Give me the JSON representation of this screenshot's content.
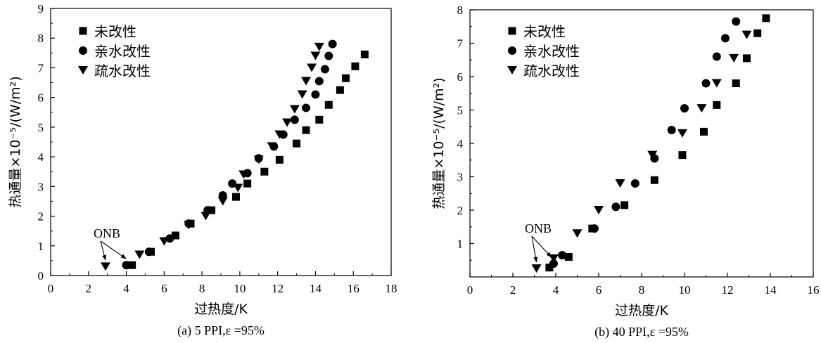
{
  "chart_data": [
    {
      "type": "scatter",
      "caption": "(a) 5 PPI,ε =95%",
      "xlabel": "过热度/K",
      "ylabel": "热通量×10⁻⁵/(W/m²)",
      "xlim": [
        0,
        18
      ],
      "ylim": [
        0,
        9
      ],
      "xticks": [
        0,
        2,
        4,
        6,
        8,
        10,
        12,
        14,
        16,
        18
      ],
      "yticks": [
        0,
        1,
        2,
        3,
        4,
        5,
        6,
        7,
        8,
        9
      ],
      "legend_position": "top-left",
      "annotation": {
        "text": "ONB",
        "targets": [
          [
            2.9,
            0.3
          ],
          [
            4.0,
            0.35
          ]
        ]
      },
      "series": [
        {
          "name": "未改性",
          "marker": "square",
          "x": [
            4.3,
            5.3,
            6.6,
            7.4,
            8.5,
            9.8,
            10.4,
            11.3,
            12.1,
            13.0,
            13.5,
            14.2,
            14.7,
            15.3,
            15.6,
            16.1,
            16.6
          ],
          "y": [
            0.35,
            0.8,
            1.35,
            1.75,
            2.2,
            2.65,
            3.1,
            3.5,
            3.9,
            4.45,
            4.9,
            5.25,
            5.75,
            6.25,
            6.65,
            7.05,
            7.45
          ]
        },
        {
          "name": "亲水改性",
          "marker": "circle",
          "x": [
            4.0,
            5.2,
            6.3,
            7.3,
            8.3,
            9.1,
            9.6,
            10.4,
            11.0,
            11.8,
            12.3,
            12.9,
            13.5,
            14.0,
            14.2,
            14.5,
            14.7,
            14.9
          ],
          "y": [
            0.35,
            0.8,
            1.25,
            1.75,
            2.2,
            2.7,
            3.1,
            3.45,
            3.95,
            4.35,
            4.75,
            5.25,
            5.65,
            6.1,
            6.55,
            6.95,
            7.4,
            7.8
          ]
        },
        {
          "name": "疏水改性",
          "marker": "triangle-down",
          "x": [
            2.9,
            4.7,
            6.0,
            7.3,
            8.2,
            9.1,
            9.9,
            10.2,
            11.0,
            11.7,
            12.1,
            12.5,
            12.9,
            13.3,
            13.5,
            13.8,
            14.0,
            14.2
          ],
          "y": [
            0.3,
            0.7,
            1.15,
            1.7,
            2.0,
            2.5,
            2.95,
            3.4,
            3.9,
            4.35,
            4.75,
            5.15,
            5.6,
            6.1,
            6.55,
            7.0,
            7.4,
            7.7
          ]
        }
      ]
    },
    {
      "type": "scatter",
      "caption": "(b) 40 PPI,ε =95%",
      "xlabel": "过热度/K",
      "ylabel": "热通量×10⁻⁵/(W/m²)",
      "xlim": [
        0,
        16
      ],
      "ylim": [
        0,
        8
      ],
      "xticks": [
        0,
        2,
        4,
        6,
        8,
        10,
        12,
        14,
        16
      ],
      "yticks": [
        1,
        2,
        3,
        4,
        5,
        6,
        7,
        8
      ],
      "legend_position": "top-left",
      "annotation": {
        "text": "ONB",
        "targets": [
          [
            3.1,
            0.25
          ],
          [
            3.8,
            0.4
          ]
        ]
      },
      "series": [
        {
          "name": "未改性",
          "marker": "square",
          "x": [
            3.7,
            4.6,
            5.7,
            7.2,
            8.6,
            9.9,
            10.9,
            11.5,
            12.4,
            12.9,
            13.4,
            13.8
          ],
          "y": [
            0.28,
            0.6,
            1.45,
            2.15,
            2.9,
            3.65,
            4.35,
            5.15,
            5.8,
            6.55,
            7.3,
            7.75
          ]
        },
        {
          "name": "亲水改性",
          "marker": "circle",
          "x": [
            3.9,
            4.3,
            5.8,
            6.8,
            7.7,
            8.6,
            9.4,
            10.0,
            11.0,
            11.5,
            11.9,
            12.4
          ],
          "y": [
            0.4,
            0.65,
            1.45,
            2.1,
            2.8,
            3.55,
            4.4,
            5.05,
            5.8,
            6.6,
            7.15,
            7.65
          ]
        },
        {
          "name": "疏水改性",
          "marker": "triangle-down",
          "x": [
            3.1,
            3.9,
            5.0,
            6.0,
            7.0,
            8.5,
            9.9,
            10.8,
            11.5,
            12.3,
            12.9
          ],
          "y": [
            0.25,
            0.55,
            1.3,
            2.0,
            2.8,
            3.65,
            4.3,
            5.05,
            5.8,
            6.55,
            7.25
          ]
        }
      ]
    }
  ]
}
